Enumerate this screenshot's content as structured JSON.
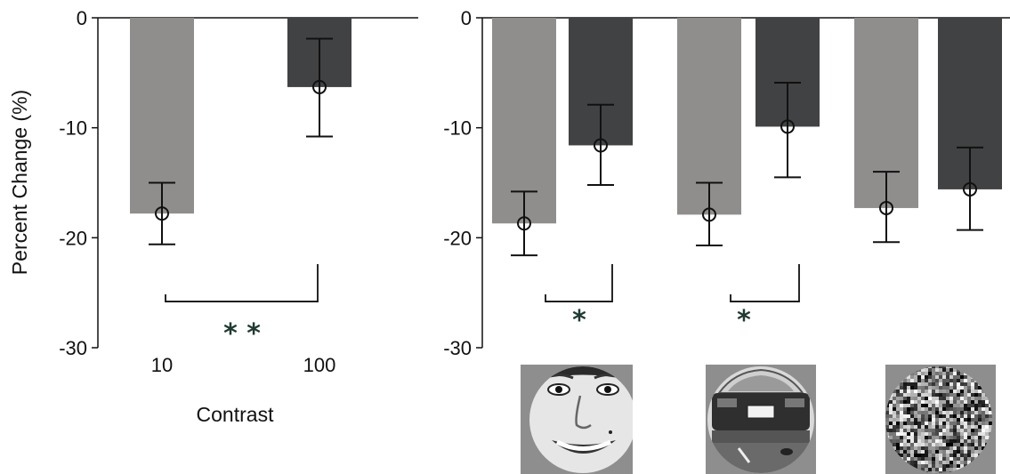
{
  "colors": {
    "light_bar": "#908e8d",
    "dark_bar": "#414243",
    "axis": "#111111",
    "significance": "#1f3b33"
  },
  "chart_data": [
    {
      "type": "bar",
      "title": "",
      "xlabel": "Contrast",
      "ylabel": "Percent Change (%)",
      "ylim": [
        -30,
        0
      ],
      "yticks": [
        "0",
        "-10",
        "-20",
        "-30"
      ],
      "yticks_values": [
        0,
        -10,
        -20,
        -30
      ],
      "categories": [
        "10",
        "100"
      ],
      "bars": [
        {
          "category": "10",
          "tone": "light",
          "value": -17.8,
          "err_low": -20.6,
          "err_high": -15.0
        },
        {
          "category": "100",
          "tone": "dark",
          "value": -6.3,
          "err_low": -10.8,
          "err_high": -1.9
        }
      ],
      "annotations": [
        {
          "label": "* *",
          "between": [
            "10",
            "100"
          ],
          "bracket_y": -25.8
        }
      ]
    },
    {
      "type": "bar",
      "title": "",
      "xlabel": "",
      "ylabel": "",
      "ylim": [
        -30,
        0
      ],
      "yticks": [
        "0",
        "-10",
        "-20",
        "-30"
      ],
      "yticks_values": [
        0,
        -10,
        -20,
        -30
      ],
      "categories": [
        "face",
        "car",
        "noise"
      ],
      "category_icons": [
        "face-image-icon",
        "car-image-icon",
        "noise-image-icon"
      ],
      "bars": [
        {
          "category": "face",
          "tone": "light",
          "value": -18.7,
          "err_low": -21.6,
          "err_high": -15.8
        },
        {
          "category": "face",
          "tone": "dark",
          "value": -11.6,
          "err_low": -15.2,
          "err_high": -7.9
        },
        {
          "category": "car",
          "tone": "light",
          "value": -17.9,
          "err_low": -20.7,
          "err_high": -15.0
        },
        {
          "category": "car",
          "tone": "dark",
          "value": -9.9,
          "err_low": -14.5,
          "err_high": -5.9
        },
        {
          "category": "noise",
          "tone": "light",
          "value": -17.3,
          "err_low": -20.4,
          "err_high": -14.0
        },
        {
          "category": "noise",
          "tone": "dark",
          "value": -15.6,
          "err_low": -19.3,
          "err_high": -11.8
        }
      ],
      "annotations": [
        {
          "label": "*",
          "between": [
            "face-light",
            "face-dark"
          ],
          "bracket_y": -25.8
        },
        {
          "label": "*",
          "between": [
            "car-light",
            "car-dark"
          ],
          "bracket_y": -25.8
        }
      ]
    }
  ]
}
